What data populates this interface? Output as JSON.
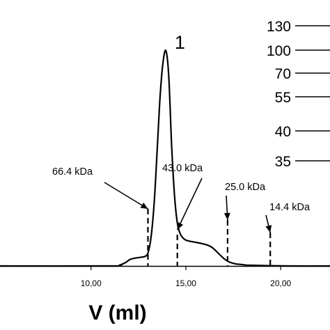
{
  "chart_data": {
    "type": "line",
    "xlabel": "V (ml)",
    "ylabel": "",
    "xlim": [
      5.2,
      22.6
    ],
    "ylim": [
      0,
      1.0
    ],
    "x_ticks": [
      {
        "value": 10,
        "label": "10,00"
      },
      {
        "value": 15,
        "label": "15,00"
      },
      {
        "value": 20,
        "label": "20,00"
      }
    ],
    "series": [
      {
        "name": "",
        "x": [
          5.2,
          11.0,
          11.5,
          11.8,
          12.05,
          12.3,
          12.6,
          12.9,
          13.05,
          13.2,
          13.35,
          13.5,
          13.65,
          13.8,
          13.95,
          14.1,
          14.25,
          14.4,
          14.55,
          14.7,
          14.85,
          15.0,
          15.2,
          15.5,
          15.8,
          16.1,
          16.4,
          16.7,
          17.0,
          17.3,
          17.6,
          17.9,
          18.2,
          18.6,
          19.0,
          19.5,
          20.5,
          22.6
        ],
        "y": [
          0.0,
          0.0,
          0.004,
          0.015,
          0.03,
          0.036,
          0.04,
          0.047,
          0.075,
          0.16,
          0.32,
          0.56,
          0.8,
          0.95,
          1.0,
          0.88,
          0.56,
          0.33,
          0.2,
          0.15,
          0.13,
          0.12,
          0.115,
          0.11,
          0.105,
          0.098,
          0.085,
          0.06,
          0.035,
          0.018,
          0.01,
          0.007,
          0.004,
          0.003,
          0.002,
          0.001,
          0.0,
          0.0
        ]
      }
    ],
    "peak_label": {
      "text": "1",
      "x": 13.95
    },
    "markers": [
      {
        "label": "66.4 kDa",
        "x": 13.0
      },
      {
        "label": "43.0 kDa",
        "x": 14.55
      },
      {
        "label": "25.0 kDa",
        "x": 17.2
      },
      {
        "label": "14.4 kDa",
        "x": 19.45
      }
    ],
    "ladder": [
      "130",
      "100",
      "70",
      "55",
      "40",
      "35"
    ]
  }
}
